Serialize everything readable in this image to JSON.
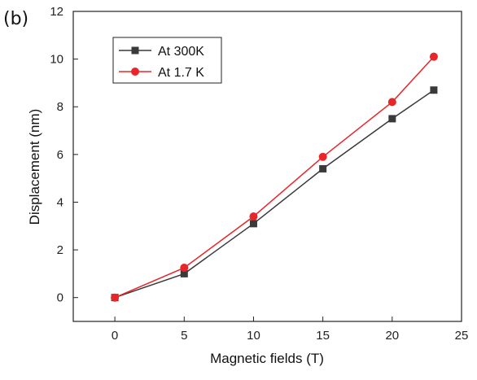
{
  "panel_label": "(b)",
  "chart_data": {
    "type": "line",
    "title": "",
    "xlabel": "Magnetic fields (T)",
    "ylabel": "Displacement (nm)",
    "xlim": [
      -3,
      25
    ],
    "ylim": [
      -1,
      12
    ],
    "xticks": [
      0,
      5,
      10,
      15,
      20,
      25
    ],
    "yticks": [
      0,
      2,
      4,
      6,
      8,
      10,
      12
    ],
    "grid": false,
    "legend_position": "top-left",
    "series": [
      {
        "name": "At 300K",
        "color": "#3a3a3a",
        "marker": "square",
        "x": [
          0,
          5,
          10,
          15,
          20,
          23
        ],
        "y": [
          0,
          1.0,
          3.1,
          5.4,
          7.5,
          8.7
        ]
      },
      {
        "name": "At 1.7 K",
        "color": "#e8262a",
        "marker": "circle",
        "x": [
          0,
          5,
          10,
          15,
          20,
          23
        ],
        "y": [
          0,
          1.25,
          3.4,
          5.9,
          8.2,
          10.1
        ]
      }
    ]
  }
}
